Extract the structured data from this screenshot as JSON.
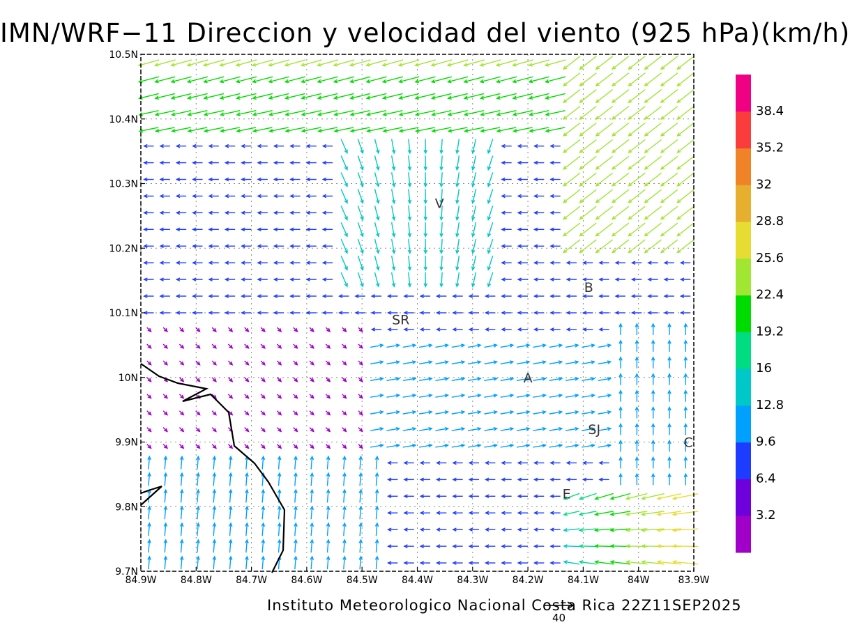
{
  "title": "IMN/WRF−11 Direccion y velocidad del viento (925 hPa)(km/h)",
  "footer": "Instituto Meteorologico Nacional Costa Rica 22Z11SEP2025",
  "reference_vector": {
    "label": "40",
    "value_kmh": 40
  },
  "map": {
    "lon_range": [
      -84.9,
      -83.9
    ],
    "lat_range": [
      9.7,
      10.5
    ],
    "x_tick_labels": [
      "84.9W",
      "84.8W",
      "84.7W",
      "84.6W",
      "84.5W",
      "84.4W",
      "84.3W",
      "84.2W",
      "84.1W",
      "84W",
      "83.9W"
    ],
    "y_tick_labels": [
      "9.7N",
      "9.8N",
      "9.9N",
      "10N",
      "10.1N",
      "10.2N",
      "10.3N",
      "10.4N",
      "10.5N"
    ],
    "gridlines": "dotted",
    "coastline_color": "#000000",
    "places": [
      {
        "label": "V",
        "lon": -84.36,
        "lat": 10.27
      },
      {
        "label": "SR",
        "lon": -84.43,
        "lat": 10.09
      },
      {
        "label": "B",
        "lon": -84.09,
        "lat": 10.14
      },
      {
        "label": "A",
        "lon": -84.2,
        "lat": 10.0
      },
      {
        "label": "SJ",
        "lon": -84.08,
        "lat": 9.92
      },
      {
        "label": "C",
        "lon": -83.91,
        "lat": 9.9
      },
      {
        "label": "E",
        "lon": -84.13,
        "lat": 9.82
      }
    ]
  },
  "colorbar": {
    "labels": [
      "3.2",
      "6.4",
      "9.6",
      "12.8",
      "16",
      "19.2",
      "22.4",
      "25.6",
      "28.8",
      "32",
      "35.2",
      "38.4"
    ],
    "colors": [
      "#a000c8",
      "#6e00dc",
      "#1e3cff",
      "#00a0ff",
      "#00c8c8",
      "#00dc82",
      "#00dc00",
      "#a0e632",
      "#e6dc32",
      "#e6af2d",
      "#f08228",
      "#fa3c3c",
      "#f00082"
    ]
  }
}
